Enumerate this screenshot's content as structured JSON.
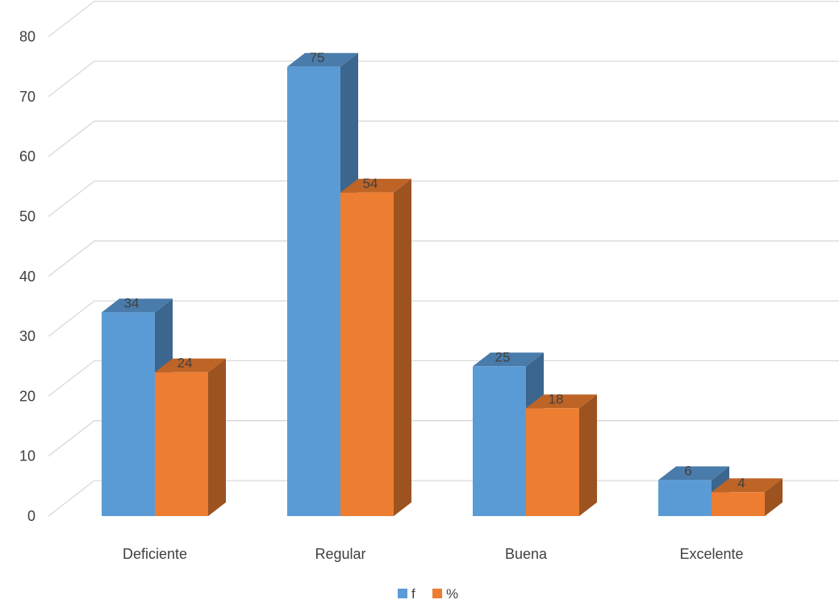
{
  "chart_data": {
    "type": "bar",
    "categories": [
      "Deficiente",
      "Regular",
      "Buena",
      "Excelente"
    ],
    "series": [
      {
        "name": "f",
        "values": [
          34,
          75,
          25,
          6
        ],
        "color": "#5b9bd5"
      },
      {
        "name": "%",
        "values": [
          24,
          54,
          18,
          4
        ],
        "color": "#ed7d31"
      }
    ],
    "ylim": [
      0,
      80
    ],
    "yticks": [
      0,
      10,
      20,
      30,
      40,
      50,
      60,
      70,
      80
    ],
    "grid": true,
    "legend_position": "bottom-center",
    "three_d": true
  }
}
